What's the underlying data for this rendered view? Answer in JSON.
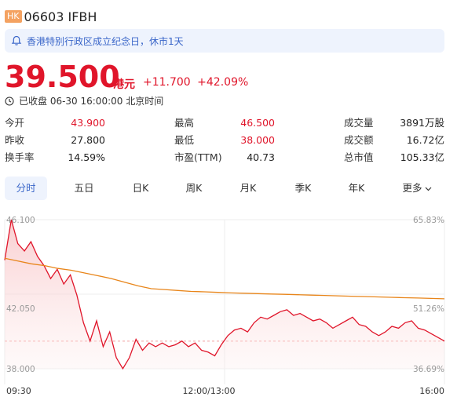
{
  "header": {
    "market_badge": "HK",
    "code_name": "06603 IFBH"
  },
  "notice": {
    "text": "香港特别行政区成立纪念日，休市1天"
  },
  "quote": {
    "price": "39.500",
    "unit": "港元",
    "change": "+11.700",
    "change_pct": "+42.09%",
    "status": "已收盘 06-30 16:00:00 北京时间"
  },
  "stats": [
    {
      "label": "今开",
      "value": "43.900",
      "color": "#e0152a"
    },
    {
      "label": "最高",
      "value": "46.500",
      "color": "#e0152a"
    },
    {
      "label": "成交量",
      "value": "3891万股",
      "color": "#222222"
    },
    {
      "label": "昨收",
      "value": "27.800",
      "color": "#222222"
    },
    {
      "label": "最低",
      "value": "38.000",
      "color": "#e0152a"
    },
    {
      "label": "成交额",
      "value": "16.72亿",
      "color": "#222222"
    },
    {
      "label": "换手率",
      "value": "14.59%",
      "color": "#222222"
    },
    {
      "label": "市盈(TTM)",
      "value": "40.73",
      "color": "#222222"
    },
    {
      "label": "总市值",
      "value": "105.33亿",
      "color": "#222222"
    }
  ],
  "tabs": [
    "分时",
    "五日",
    "日K",
    "周K",
    "月K",
    "季K",
    "年K",
    "更多"
  ],
  "active_tab": "分时",
  "chart_data": {
    "type": "line",
    "y_left_ticks": [
      "46.100",
      "42.050",
      "38.000"
    ],
    "y_right_ticks": [
      "65.83%",
      "51.26%",
      "36.69%"
    ],
    "x_ticks": [
      "09:30",
      "12:00/13:00",
      "16:00"
    ],
    "ylim": [
      38.0,
      46.1
    ],
    "prev_close": 27.8,
    "series": [
      {
        "color": "#e0152a",
        "values": [
          43.9,
          46.1,
          44.8,
          44.4,
          44.9,
          44.1,
          43.6,
          42.9,
          43.4,
          42.6,
          43.1,
          42.0,
          40.5,
          39.5,
          40.6,
          39.2,
          40.0,
          38.6,
          38.0,
          38.6,
          39.6,
          39.0,
          39.4,
          39.2,
          39.4,
          39.2,
          39.3,
          39.5,
          39.2,
          39.4,
          39.0,
          38.9,
          38.7,
          39.3,
          39.8,
          40.1,
          40.2,
          40.0,
          40.5,
          40.8,
          40.7,
          40.9,
          41.1,
          41.2,
          40.9,
          41.0,
          40.8,
          40.6,
          40.7,
          40.5,
          40.2,
          40.4,
          40.6,
          40.8,
          40.4,
          40.3,
          40.0,
          39.8,
          40.0,
          40.3,
          40.2,
          40.5,
          40.6,
          40.2,
          40.1,
          39.9,
          39.7,
          39.5
        ]
      },
      {
        "color": "#e8851a",
        "values": [
          44.0,
          43.85,
          43.7,
          43.6,
          43.45,
          43.35,
          43.2,
          43.05,
          42.9,
          42.7,
          42.5,
          42.35,
          42.3,
          42.25,
          42.2,
          42.18,
          42.15,
          42.12,
          42.1,
          42.08,
          42.06,
          42.04,
          42.02,
          42.0,
          41.98,
          41.96,
          41.94,
          41.92,
          41.9,
          41.88,
          41.86,
          41.84,
          41.82,
          41.8
        ]
      }
    ]
  }
}
